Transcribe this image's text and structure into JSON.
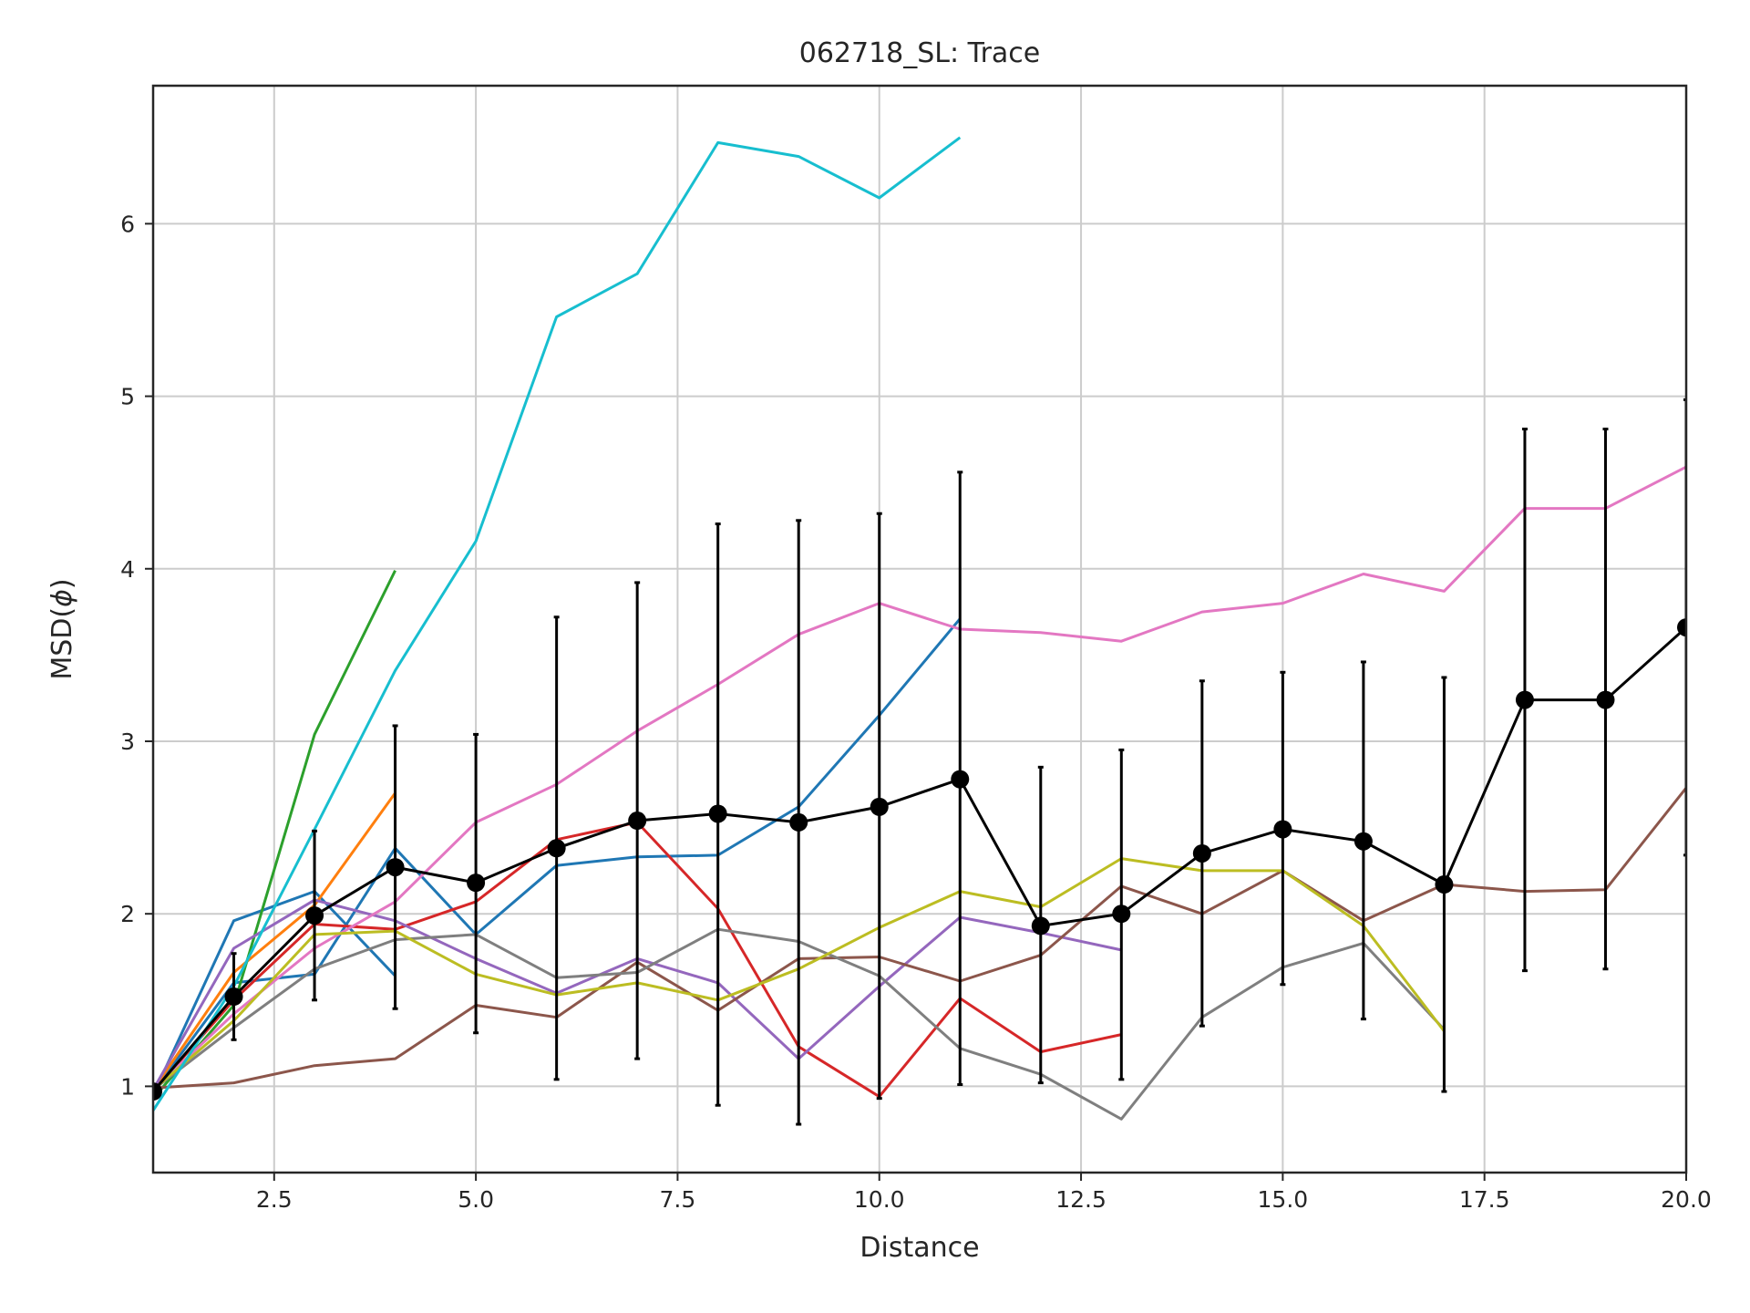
{
  "chart_data": {
    "type": "line",
    "title": "062718_SL: Trace",
    "xlabel": "Distance",
    "ylabel": "MSD(",
    "ylabel_symbol": "ϕ",
    "ylabel_close": ")",
    "xlim": [
      1,
      20
    ],
    "ylim": [
      0.5,
      6.8
    ],
    "xticks": [
      2.5,
      5.0,
      7.5,
      10.0,
      12.5,
      15.0,
      17.5,
      20.0
    ],
    "xtick_labels": [
      "2.5",
      "5.0",
      "7.5",
      "10.0",
      "12.5",
      "15.0",
      "17.5",
      "20.0"
    ],
    "yticks": [
      1,
      2,
      3,
      4,
      5,
      6
    ],
    "ytick_labels": [
      "1",
      "2",
      "3",
      "4",
      "5",
      "6"
    ],
    "grid": true,
    "series": [
      {
        "color": "#1f77b4",
        "x": [
          1,
          2,
          3,
          4
        ],
        "y": [
          0.95,
          1.96,
          2.13,
          1.64
        ]
      },
      {
        "color": "#1f77b4",
        "x": [
          1,
          2,
          3,
          4,
          5,
          6,
          7,
          8,
          9,
          10,
          11
        ],
        "y": [
          0.97,
          1.6,
          1.65,
          2.38,
          1.88,
          2.28,
          2.33,
          2.34,
          2.62,
          3.15,
          3.71
        ]
      },
      {
        "color": "#ff7f0e",
        "x": [
          1,
          2,
          3,
          4
        ],
        "y": [
          0.98,
          1.66,
          2.05,
          2.7
        ]
      },
      {
        "color": "#2ca02c",
        "x": [
          1,
          2,
          3,
          4
        ],
        "y": [
          0.93,
          1.47,
          3.04,
          3.99
        ]
      },
      {
        "color": "#d62728",
        "x": [
          1,
          2,
          3,
          4,
          5,
          6,
          7,
          8,
          9,
          10,
          11,
          12,
          13
        ],
        "y": [
          0.97,
          1.5,
          1.94,
          1.91,
          2.07,
          2.43,
          2.53,
          2.03,
          1.23,
          0.94,
          1.51,
          1.2,
          1.3
        ]
      },
      {
        "color": "#9467bd",
        "x": [
          1,
          2,
          3,
          4,
          5,
          6,
          7,
          8,
          9,
          10,
          11,
          12,
          13
        ],
        "y": [
          0.98,
          1.8,
          2.08,
          1.96,
          1.74,
          1.54,
          1.74,
          1.6,
          1.16,
          1.58,
          1.98,
          1.89,
          1.79
        ]
      },
      {
        "color": "#8c564b",
        "x": [
          1,
          2,
          3,
          4,
          5,
          6,
          7,
          8,
          9,
          10,
          11,
          12,
          13,
          14,
          15,
          16,
          17,
          18,
          19,
          20
        ],
        "y": [
          0.99,
          1.02,
          1.12,
          1.16,
          1.47,
          1.4,
          1.72,
          1.44,
          1.74,
          1.75,
          1.61,
          1.76,
          2.16,
          2.0,
          2.25,
          1.96,
          2.17,
          2.13,
          2.14,
          2.73
        ]
      },
      {
        "color": "#e377c2",
        "x": [
          1,
          2,
          3,
          4,
          5,
          6,
          7,
          8,
          9,
          10,
          11,
          12,
          13,
          14,
          15,
          16,
          17,
          18,
          19,
          20
        ],
        "y": [
          0.98,
          1.42,
          1.8,
          2.07,
          2.53,
          2.75,
          3.06,
          3.33,
          3.62,
          3.8,
          3.65,
          3.63,
          3.58,
          3.75,
          3.8,
          3.97,
          3.87,
          4.35,
          4.35,
          4.59
        ]
      },
      {
        "color": "#7f7f7f",
        "x": [
          1,
          2,
          3,
          4,
          5,
          6,
          7,
          8,
          9,
          10,
          11,
          12,
          13,
          14,
          15,
          16,
          17
        ],
        "y": [
          0.98,
          1.34,
          1.68,
          1.85,
          1.88,
          1.63,
          1.66,
          1.91,
          1.84,
          1.64,
          1.22,
          1.07,
          0.81,
          1.4,
          1.69,
          1.83,
          1.33
        ]
      },
      {
        "color": "#bcbd22",
        "x": [
          1,
          2,
          3,
          4,
          5,
          6,
          7,
          8,
          9,
          10,
          11,
          12,
          13,
          14,
          15,
          16,
          17
        ],
        "y": [
          0.98,
          1.38,
          1.88,
          1.9,
          1.65,
          1.53,
          1.6,
          1.5,
          1.68,
          1.92,
          2.13,
          2.04,
          2.32,
          2.25,
          2.25,
          1.93,
          1.32
        ]
      },
      {
        "color": "#17becf",
        "x": [
          1,
          2,
          3,
          4,
          5,
          6,
          7,
          8,
          9,
          10,
          11
        ],
        "y": [
          0.86,
          1.58,
          2.49,
          3.41,
          4.16,
          5.46,
          5.71,
          6.47,
          6.39,
          6.15,
          6.5
        ]
      }
    ],
    "mean": {
      "color": "#000000",
      "x": [
        1,
        2,
        3,
        4,
        5,
        6,
        7,
        8,
        9,
        10,
        11,
        12,
        13,
        14,
        15,
        16,
        17,
        18,
        19,
        20
      ],
      "y": [
        0.97,
        1.52,
        1.99,
        2.27,
        2.18,
        2.38,
        2.54,
        2.58,
        2.53,
        2.62,
        2.78,
        1.93,
        2.0,
        2.35,
        2.49,
        2.42,
        2.17,
        3.24,
        3.24,
        3.66
      ],
      "err_low": [
        0.97,
        1.27,
        1.5,
        1.45,
        1.31,
        1.04,
        1.16,
        0.89,
        0.78,
        0.93,
        1.01,
        1.02,
        1.04,
        1.35,
        1.59,
        1.39,
        0.97,
        1.67,
        1.68,
        2.34
      ],
      "err_high": [
        0.97,
        1.77,
        2.48,
        3.09,
        3.04,
        3.72,
        3.92,
        4.26,
        4.28,
        4.32,
        4.56,
        2.85,
        2.95,
        3.35,
        3.4,
        3.46,
        3.37,
        4.81,
        4.81,
        4.98
      ]
    }
  }
}
